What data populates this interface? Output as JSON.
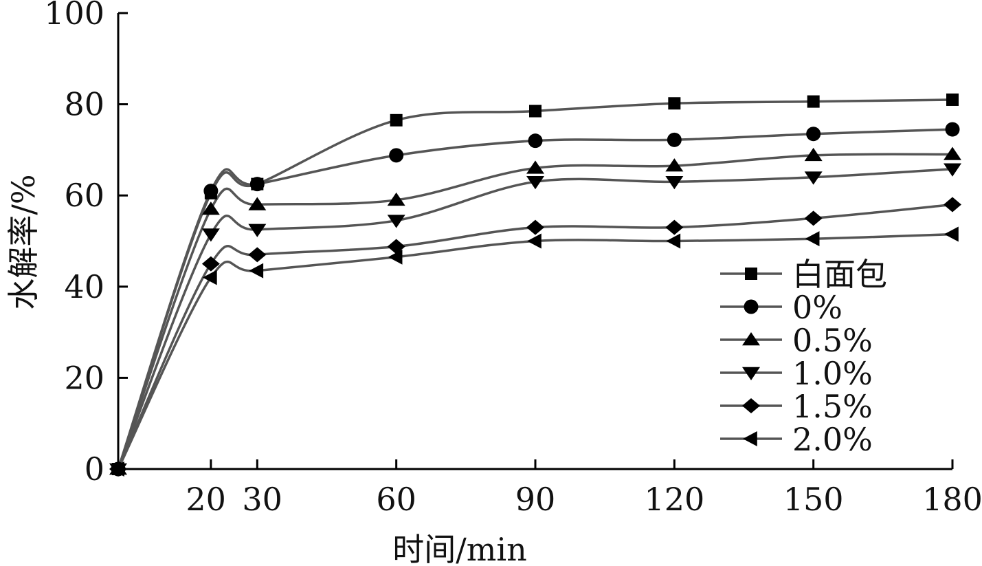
{
  "chart_data": {
    "type": "line",
    "xlabel": "时间/min",
    "ylabel": "水解率/%",
    "xlim": [
      0,
      180
    ],
    "ylim": [
      0,
      100
    ],
    "x_ticks": [
      20,
      30,
      60,
      90,
      120,
      150,
      180
    ],
    "y_ticks": [
      0,
      20,
      40,
      60,
      80,
      100
    ],
    "grid": false,
    "legend_position": "right",
    "x": [
      0,
      20,
      30,
      60,
      90,
      120,
      150,
      180
    ],
    "series": [
      {
        "name": "白面包",
        "marker": "square",
        "values": [
          0,
          60.5,
          62.5,
          76.5,
          78.5,
          80.2,
          80.6,
          81.0
        ]
      },
      {
        "name": "0%",
        "marker": "circle",
        "values": [
          0,
          61.0,
          62.5,
          68.8,
          72.0,
          72.2,
          73.5,
          74.5
        ]
      },
      {
        "name": "0.5%",
        "marker": "triangle-up",
        "values": [
          0,
          57.0,
          58.0,
          59.0,
          66.0,
          66.5,
          68.8,
          69.0
        ]
      },
      {
        "name": "1.0%",
        "marker": "triangle-down",
        "values": [
          0,
          51.5,
          52.5,
          54.5,
          63.0,
          63.0,
          64.0,
          65.8
        ]
      },
      {
        "name": "1.5%",
        "marker": "diamond",
        "values": [
          0,
          45.0,
          47.0,
          48.8,
          53.0,
          53.0,
          55.0,
          58.0
        ]
      },
      {
        "name": "2.0%",
        "marker": "triangle-left",
        "values": [
          0,
          42.0,
          43.5,
          46.5,
          50.0,
          50.0,
          50.5,
          51.5
        ]
      }
    ]
  }
}
